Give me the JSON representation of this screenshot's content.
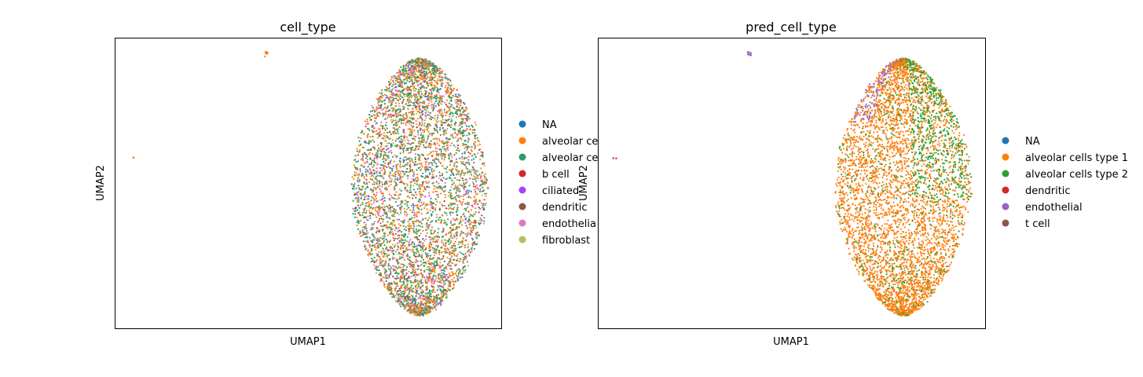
{
  "chart_data": [
    {
      "type": "scatter",
      "title": "cell_type",
      "xlabel": "UMAP1",
      "ylabel": "UMAP2",
      "grid": false,
      "legend_placement": "right outside",
      "legend": [
        {
          "label": "NA",
          "color": "#1f77b4"
        },
        {
          "label": "alveolar ce",
          "color": "#ff7f0e"
        },
        {
          "label": "alveolar ce",
          "color": "#279e68"
        },
        {
          "label": "b cell",
          "color": "#d62728"
        },
        {
          "label": "ciliated",
          "color": "#aa40fc"
        },
        {
          "label": "dendritic",
          "color": "#8c564b"
        },
        {
          "label": "endothelia",
          "color": "#e377c2"
        },
        {
          "label": "fibroblast",
          "color": "#b5bd61"
        }
      ],
      "series_mix": [
        {
          "label": "alveolar ce",
          "color": "#ff7f0e",
          "fraction": 0.34
        },
        {
          "label": "alveolar ce",
          "color": "#279e68",
          "fraction": 0.34
        },
        {
          "label": "endothelia",
          "color": "#e377c2",
          "fraction": 0.12
        },
        {
          "label": "fibroblast",
          "color": "#b5bd61",
          "fraction": 0.07
        },
        {
          "label": "dendritic",
          "color": "#8c564b",
          "fraction": 0.05
        },
        {
          "label": "ciliated",
          "color": "#aa40fc",
          "fraction": 0.04
        },
        {
          "label": "b cell",
          "color": "#d62728",
          "fraction": 0.02
        },
        {
          "label": "NA",
          "color": "#1f77b4",
          "fraction": 0.02
        }
      ],
      "outliers": [
        {
          "x": 0.39,
          "y": 0.945,
          "color": "#ff7f0e"
        },
        {
          "x": 0.043,
          "y": 0.585,
          "color": "#ff7f0e"
        }
      ]
    },
    {
      "type": "scatter",
      "title": "pred_cell_type",
      "xlabel": "UMAP1",
      "ylabel": "UMAP2",
      "grid": false,
      "legend_placement": "right outside",
      "legend": [
        {
          "label": "NA",
          "color": "#1f77b4"
        },
        {
          "label": "alveolar cells type 1",
          "color": "#ff7f0e"
        },
        {
          "label": "alveolar cells type 2",
          "color": "#2ca02c"
        },
        {
          "label": "dendritic",
          "color": "#d62728"
        },
        {
          "label": "endothelial",
          "color": "#9467bd"
        },
        {
          "label": "t cell",
          "color": "#8c564b"
        }
      ],
      "series_mix": [
        {
          "label": "alveolar cells type 1",
          "color": "#ff7f0e",
          "fraction": 0.7
        },
        {
          "label": "alveolar cells type 2",
          "color": "#2ca02c",
          "fraction": 0.27
        },
        {
          "label": "endothelial",
          "color": "#9467bd",
          "fraction": 0.03
        }
      ],
      "outliers": [
        {
          "x": 0.39,
          "y": 0.945,
          "color": "#9467bd"
        },
        {
          "x": 0.043,
          "y": 0.585,
          "color": "#d62728"
        }
      ]
    }
  ]
}
